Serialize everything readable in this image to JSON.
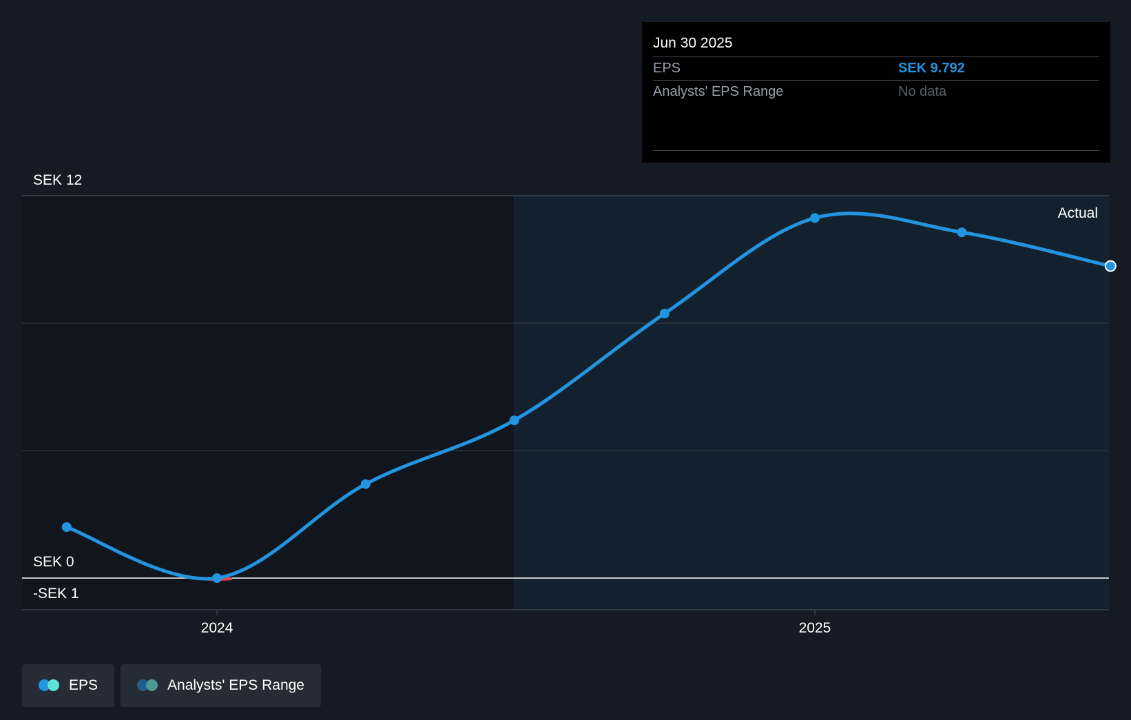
{
  "chart_data": {
    "type": "line",
    "currency": "SEK",
    "y_axis_labels": [
      "SEK 12",
      "SEK 0",
      "-SEK 1"
    ],
    "ylim": [
      -1,
      12
    ],
    "x_ticks": [
      "2024",
      "2025"
    ],
    "region_label": "Actual",
    "grid": true,
    "legend_placement": "bottom-left",
    "series": [
      {
        "name": "EPS",
        "color": "#2394df",
        "points": [
          {
            "x": "2023-09-30",
            "y": 1.6
          },
          {
            "x": "2023-12-31",
            "y": 0.0
          },
          {
            "x": "2024-03-31",
            "y": 2.95
          },
          {
            "x": "2024-06-30",
            "y": 4.95
          },
          {
            "x": "2024-09-30",
            "y": 8.3
          },
          {
            "x": "2024-12-31",
            "y": 11.3
          },
          {
            "x": "2025-03-31",
            "y": 10.85
          },
          {
            "x": "2025-06-30",
            "y": 9.792
          }
        ]
      }
    ],
    "negative_color": "#e0464a"
  },
  "tooltip": {
    "date": "Jun 30 2025",
    "rows": [
      {
        "label": "EPS",
        "value": "SEK 9.792"
      },
      {
        "label": "Analysts' EPS Range",
        "value": "No data"
      }
    ]
  },
  "legend": [
    {
      "label": "EPS",
      "colors": [
        "#2394df",
        "#5ee3d6"
      ]
    },
    {
      "label": "Analysts' EPS Range",
      "colors": [
        "#1f5e8c",
        "#4a9a92"
      ]
    }
  ],
  "colors": {
    "background": "#151b24",
    "past_region": "#11161e",
    "actual_region": "#13212f",
    "grid": "#2a323c",
    "zero_line": "#ffffff"
  }
}
